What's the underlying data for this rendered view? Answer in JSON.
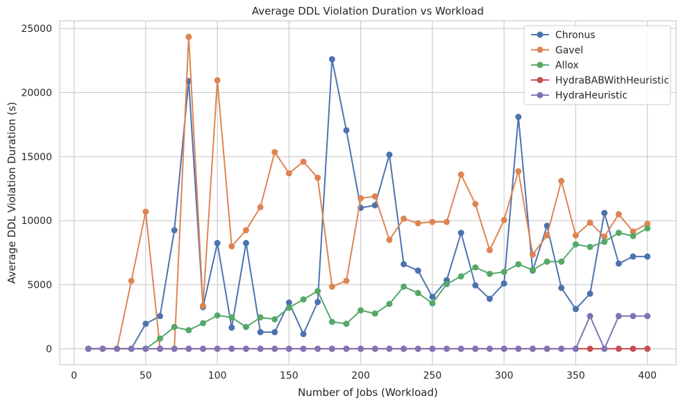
{
  "chart_data": {
    "type": "line",
    "title": "Average DDL Violation Duration vs Workload",
    "xlabel": "Number of Jobs (Workload)",
    "ylabel": "Average DDL Violation Duration (s)",
    "xlim": [
      -10,
      420
    ],
    "ylim": [
      -1250,
      25600
    ],
    "xticks": [
      0,
      50,
      100,
      150,
      200,
      250,
      300,
      350,
      400
    ],
    "yticks": [
      0,
      5000,
      10000,
      15000,
      20000,
      25000
    ],
    "grid": true,
    "legend_position": "top-right",
    "x": [
      10,
      20,
      30,
      40,
      50,
      60,
      70,
      80,
      90,
      100,
      110,
      120,
      130,
      140,
      150,
      160,
      170,
      180,
      190,
      200,
      210,
      220,
      230,
      240,
      250,
      260,
      270,
      280,
      290,
      300,
      310,
      320,
      330,
      340,
      350,
      360,
      370,
      380,
      390,
      400
    ],
    "series": [
      {
        "name": "Chronus",
        "color": "#4c72b0",
        "values": [
          0,
          0,
          0,
          0,
          1950,
          2550,
          9250,
          20900,
          3250,
          8250,
          1650,
          8250,
          1300,
          1300,
          3600,
          1150,
          3650,
          22600,
          17050,
          11000,
          11200,
          15150,
          6600,
          6100,
          4050,
          5350,
          9050,
          4950,
          3900,
          5100,
          18100,
          6100,
          9600,
          4750,
          3100,
          4300,
          10600,
          6650,
          7200,
          7200
        ]
      },
      {
        "name": "Gavel",
        "color": "#dd8452",
        "values": [
          0,
          0,
          0,
          5300,
          10700,
          0,
          0,
          24350,
          3350,
          20950,
          8000,
          9250,
          11050,
          15350,
          13700,
          14600,
          13350,
          4850,
          5300,
          11750,
          11900,
          8500,
          10150,
          9800,
          9900,
          9900,
          13600,
          11300,
          7700,
          10050,
          13850,
          7350,
          8850,
          13100,
          8850,
          9850,
          8750,
          10500,
          9150,
          9750
        ]
      },
      {
        "name": "Allox",
        "color": "#55a868",
        "values": [
          0,
          0,
          0,
          0,
          0,
          800,
          1700,
          1450,
          2000,
          2600,
          2450,
          1700,
          2450,
          2300,
          3200,
          3850,
          4500,
          2100,
          1950,
          3000,
          2750,
          3500,
          4850,
          4350,
          3550,
          5050,
          5650,
          6350,
          5850,
          6000,
          6600,
          6150,
          6800,
          6800,
          8150,
          7950,
          8350,
          9050,
          8800,
          9400
        ]
      },
      {
        "name": "HydraBABWithHeuristic",
        "color": "#c44e52",
        "values": [
          0,
          0,
          0,
          0,
          0,
          0,
          0,
          0,
          0,
          0,
          0,
          0,
          0,
          0,
          0,
          0,
          0,
          0,
          0,
          0,
          0,
          0,
          0,
          0,
          0,
          0,
          0,
          0,
          0,
          0,
          0,
          0,
          0,
          0,
          0,
          0,
          0,
          0,
          0,
          0
        ]
      },
      {
        "name": "HydraHeuristic",
        "color": "#8172b3",
        "values": [
          0,
          0,
          0,
          0,
          0,
          0,
          0,
          0,
          0,
          0,
          0,
          0,
          0,
          0,
          0,
          0,
          0,
          0,
          0,
          0,
          0,
          0,
          0,
          0,
          0,
          0,
          0,
          0,
          0,
          0,
          0,
          0,
          0,
          0,
          0,
          2550,
          0,
          2550,
          2550,
          2550
        ]
      }
    ]
  }
}
